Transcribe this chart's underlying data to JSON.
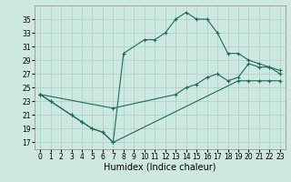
{
  "xlabel": "Humidex (Indice chaleur)",
  "curve_top_x": [
    0,
    1,
    3,
    4,
    5,
    6,
    7,
    8,
    10,
    11,
    12,
    13,
    14,
    15,
    16,
    17,
    18,
    19,
    20,
    21,
    22,
    23
  ],
  "curve_top_y": [
    24,
    23,
    21,
    20,
    19,
    18.5,
    17,
    30,
    32,
    32,
    33,
    35,
    36,
    35,
    35,
    33,
    30,
    30,
    29,
    28.5,
    28,
    27.5
  ],
  "curve_mid_x": [
    0,
    7,
    13,
    14,
    15,
    16,
    17,
    18,
    19,
    20,
    21,
    22,
    23
  ],
  "curve_mid_y": [
    24,
    22,
    24,
    25,
    25.5,
    26.5,
    27,
    26,
    26.5,
    28.5,
    28,
    28,
    27
  ],
  "curve_bot_x": [
    0,
    1,
    3,
    4,
    5,
    6,
    7,
    19,
    20,
    21,
    22,
    23
  ],
  "curve_bot_y": [
    24,
    23,
    21,
    20,
    19,
    18.5,
    17,
    26,
    26,
    26,
    26,
    26
  ],
  "ylim": [
    16,
    37
  ],
  "xlim": [
    -0.5,
    23.5
  ],
  "yticks": [
    17,
    19,
    21,
    23,
    25,
    27,
    29,
    31,
    33,
    35
  ],
  "xticks": [
    0,
    1,
    2,
    3,
    4,
    5,
    6,
    7,
    8,
    9,
    10,
    11,
    12,
    13,
    14,
    15,
    16,
    17,
    18,
    19,
    20,
    21,
    22,
    23
  ],
  "line_color": "#1a6b5a",
  "bg_color": "#cce8e0",
  "grid_color": "#aacfc8",
  "xlabel_fontsize": 7,
  "tick_fontsize": 5.5
}
